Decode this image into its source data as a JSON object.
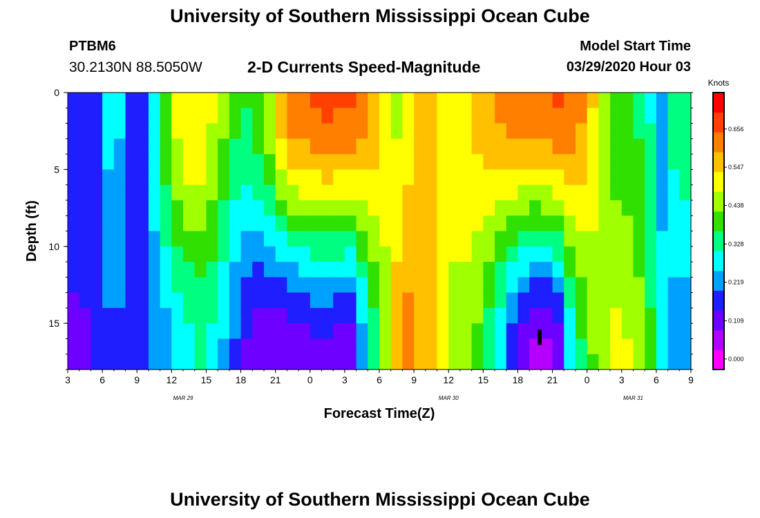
{
  "header": {
    "title": "University of Southern Mississippi Ocean Cube",
    "station_id": "PTBM6",
    "station_coords": "30.2130N 88.5050W",
    "chart_title": "2-D Currents Speed-Magnitude",
    "model_start_label": "Model Start Time",
    "model_start_value": "03/29/2020 Hour 03"
  },
  "footer": {
    "title": "University of Southern Mississippi Ocean Cube"
  },
  "chart_data": {
    "type": "heatmap",
    "title": "2-D Currents Speed-Magnitude",
    "xlabel": "Forecast Time(Z)",
    "ylabel": "Depth (ft)",
    "x_ticks": [
      "3",
      "6",
      "9",
      "12",
      "15",
      "18",
      "21",
      "0",
      "3",
      "6",
      "9",
      "12",
      "15",
      "18",
      "21",
      "0",
      "3",
      "6",
      "9"
    ],
    "x_tick_hours": [
      3,
      6,
      9,
      12,
      15,
      18,
      21,
      24,
      27,
      30,
      33,
      36,
      39,
      42,
      45,
      48,
      51,
      54,
      57
    ],
    "date_labels": [
      {
        "label": "MAR 29",
        "hour": 13
      },
      {
        "label": "MAR 30",
        "hour": 36
      },
      {
        "label": "MAR 31",
        "hour": 52
      }
    ],
    "x_range_hours": [
      3,
      57
    ],
    "y_ticks": [
      0,
      5,
      10,
      15
    ],
    "y_range": [
      0,
      18
    ],
    "y_inverted": true,
    "colorbar": {
      "title": "Knots",
      "tick_labels": [
        "0.656",
        "0.547",
        "0.438",
        "0.328",
        "0.219",
        "0.109",
        "0.000"
      ],
      "tick_values": [
        0.656,
        0.547,
        0.438,
        0.328,
        0.219,
        0.109,
        0.0
      ],
      "min": -0.03,
      "max": 0.76,
      "colors": [
        "#ff00ff",
        "#b400ff",
        "#6e00ff",
        "#1e1eff",
        "#00a0ff",
        "#00ffff",
        "#00ff80",
        "#30e000",
        "#a0ff00",
        "#ffff00",
        "#ffc000",
        "#ff8000",
        "#ff4000",
        "#ff0000"
      ]
    },
    "grid": {
      "columns": 54,
      "rows": 18,
      "depth_interpolation": [
        {
          "depth": 0,
          "top": 1,
          "bottom": 0
        },
        {
          "depth": 18,
          "top": 0,
          "bottom": 1
        }
      ],
      "surface_speed": [
        {
          "hour": 3,
          "value": 0.2
        },
        {
          "hour": 5,
          "value": 0.16
        },
        {
          "hour": 7,
          "value": 0.3
        },
        {
          "hour": 9,
          "value": 0.13
        },
        {
          "hour": 11,
          "value": 0.36
        },
        {
          "hour": 12.5,
          "value": 0.5
        },
        {
          "hour": 14,
          "value": 0.55
        },
        {
          "hour": 16,
          "value": 0.46
        },
        {
          "hour": 18,
          "value": 0.35
        },
        {
          "hour": 20,
          "value": 0.42
        },
        {
          "hour": 22,
          "value": 0.62
        },
        {
          "hour": 25,
          "value": 0.66
        },
        {
          "hour": 28,
          "value": 0.65
        },
        {
          "hour": 30,
          "value": 0.55
        },
        {
          "hour": 31.5,
          "value": 0.47
        },
        {
          "hour": 34,
          "value": 0.56
        },
        {
          "hour": 36,
          "value": 0.47
        },
        {
          "hour": 38,
          "value": 0.54
        },
        {
          "hour": 40,
          "value": 0.6
        },
        {
          "hour": 43,
          "value": 0.63
        },
        {
          "hour": 46,
          "value": 0.66
        },
        {
          "hour": 48,
          "value": 0.58
        },
        {
          "hour": 50,
          "value": 0.4
        },
        {
          "hour": 53,
          "value": 0.35
        },
        {
          "hour": 54.5,
          "value": 0.22
        },
        {
          "hour": 56,
          "value": 0.38
        },
        {
          "hour": 57,
          "value": 0.33
        }
      ],
      "bottom_speed": [
        {
          "hour": 3,
          "value": 0.12
        },
        {
          "hour": 5,
          "value": 0.14
        },
        {
          "hour": 7,
          "value": 0.2
        },
        {
          "hour": 9,
          "value": 0.15
        },
        {
          "hour": 11,
          "value": 0.22
        },
        {
          "hour": 13,
          "value": 0.28
        },
        {
          "hour": 15,
          "value": 0.32
        },
        {
          "hour": 17,
          "value": 0.22
        },
        {
          "hour": 19,
          "value": 0.1
        },
        {
          "hour": 22,
          "value": 0.08
        },
        {
          "hour": 25,
          "value": 0.12
        },
        {
          "hour": 27.5,
          "value": 0.1
        },
        {
          "hour": 29,
          "value": 0.27
        },
        {
          "hour": 30.5,
          "value": 0.45
        },
        {
          "hour": 32,
          "value": 0.62
        },
        {
          "hour": 34,
          "value": 0.58
        },
        {
          "hour": 36,
          "value": 0.48
        },
        {
          "hour": 38,
          "value": 0.45
        },
        {
          "hour": 40,
          "value": 0.3
        },
        {
          "hour": 42,
          "value": 0.12
        },
        {
          "hour": 44,
          "value": 0.04
        },
        {
          "hour": 45.5,
          "value": 0.1
        },
        {
          "hour": 47,
          "value": 0.33
        },
        {
          "hour": 49,
          "value": 0.45
        },
        {
          "hour": 51,
          "value": 0.5
        },
        {
          "hour": 53,
          "value": 0.42
        },
        {
          "hour": 54.5,
          "value": 0.28
        },
        {
          "hour": 56,
          "value": 0.2
        },
        {
          "hour": 57,
          "value": 0.24
        }
      ]
    },
    "marker": {
      "hour": 43.9,
      "depth_top": 15.4,
      "depth_bottom": 16.4,
      "width_hours": 0.35,
      "color": "#000000"
    }
  }
}
